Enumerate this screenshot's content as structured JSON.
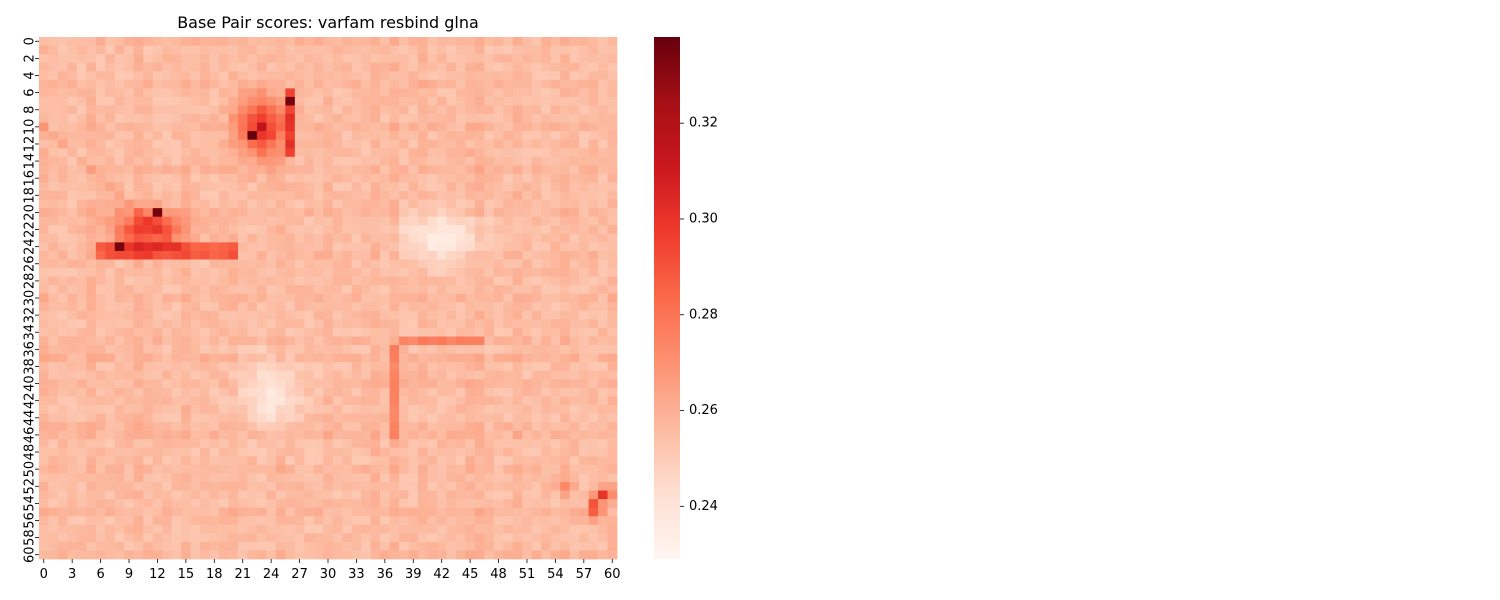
{
  "chart_data": {
    "type": "heatmap",
    "title": "Base Pair scores: varfam resbind glna",
    "xlabel": "",
    "ylabel": "",
    "n": 61,
    "x_tick_labels": [
      "0",
      "3",
      "6",
      "9",
      "12",
      "15",
      "18",
      "21",
      "24",
      "27",
      "30",
      "33",
      "36",
      "39",
      "42",
      "45",
      "48",
      "51",
      "54",
      "57",
      "60"
    ],
    "x_tick_step": 3,
    "y_tick_labels": [
      "0",
      "2",
      "4",
      "6",
      "8",
      "10",
      "12",
      "14",
      "16",
      "18",
      "20",
      "22",
      "24",
      "26",
      "28",
      "30",
      "32",
      "34",
      "36",
      "38",
      "40",
      "42",
      "44",
      "46",
      "48",
      "50",
      "52",
      "54",
      "56",
      "58",
      "60"
    ],
    "y_tick_step": 2,
    "colormap": "Reds",
    "colorbar": {
      "vmin": 0.229,
      "vmax": 0.338,
      "tick_values": [
        0.24,
        0.26,
        0.28,
        0.3,
        0.32
      ],
      "tick_labels": [
        "0.24",
        "0.26",
        "0.28",
        "0.30",
        "0.32"
      ]
    },
    "baseline_value": 0.255,
    "notable_values": [
      {
        "x": 22,
        "y": 11,
        "value": 0.338
      },
      {
        "x": 26,
        "y": 7,
        "value": 0.335
      },
      {
        "x": 12,
        "y": 20,
        "value": 0.335
      },
      {
        "x": 8,
        "y": 24,
        "value": 0.335
      },
      {
        "x": 23,
        "y": 10,
        "value": 0.315
      },
      {
        "x": 59,
        "y": 53,
        "value": 0.3
      },
      {
        "x": 58,
        "y": 54,
        "value": 0.29
      }
    ],
    "legend": "colorbar-right",
    "grid": false
  }
}
